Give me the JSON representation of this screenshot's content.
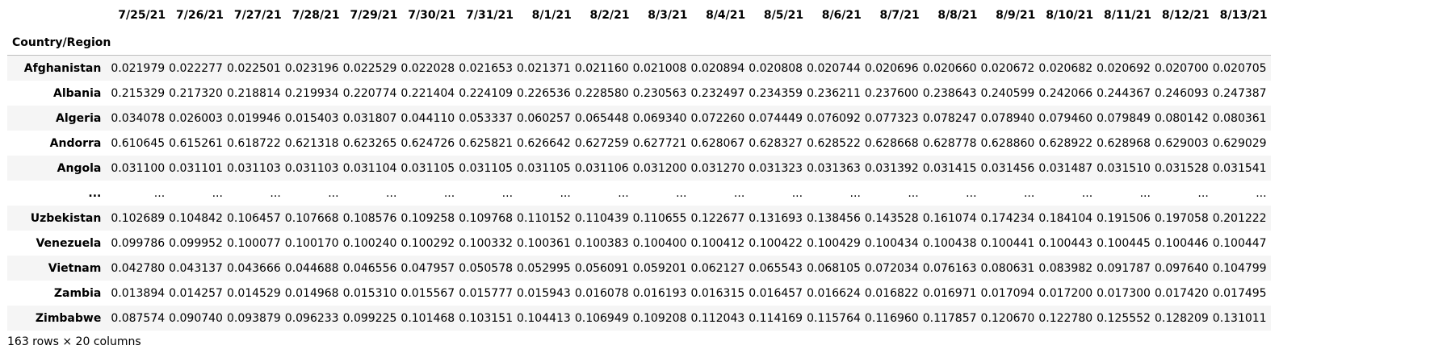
{
  "table": {
    "index_name": "Country/Region",
    "columns": [
      "7/25/21",
      "7/26/21",
      "7/27/21",
      "7/28/21",
      "7/29/21",
      "7/30/21",
      "7/31/21",
      "8/1/21",
      "8/2/21",
      "8/3/21",
      "8/4/21",
      "8/5/21",
      "8/6/21",
      "8/7/21",
      "8/8/21",
      "8/9/21",
      "8/10/21",
      "8/11/21",
      "8/12/21",
      "8/13/21"
    ],
    "rows": [
      {
        "label": "Afghanistan",
        "values": [
          "0.021979",
          "0.022277",
          "0.022501",
          "0.023196",
          "0.022529",
          "0.022028",
          "0.021653",
          "0.021371",
          "0.021160",
          "0.021008",
          "0.020894",
          "0.020808",
          "0.020744",
          "0.020696",
          "0.020660",
          "0.020672",
          "0.020682",
          "0.020692",
          "0.020700",
          "0.020705"
        ]
      },
      {
        "label": "Albania",
        "values": [
          "0.215329",
          "0.217320",
          "0.218814",
          "0.219934",
          "0.220774",
          "0.221404",
          "0.224109",
          "0.226536",
          "0.228580",
          "0.230563",
          "0.232497",
          "0.234359",
          "0.236211",
          "0.237600",
          "0.238643",
          "0.240599",
          "0.242066",
          "0.244367",
          "0.246093",
          "0.247387"
        ]
      },
      {
        "label": "Algeria",
        "values": [
          "0.034078",
          "0.026003",
          "0.019946",
          "0.015403",
          "0.031807",
          "0.044110",
          "0.053337",
          "0.060257",
          "0.065448",
          "0.069340",
          "0.072260",
          "0.074449",
          "0.076092",
          "0.077323",
          "0.078247",
          "0.078940",
          "0.079460",
          "0.079849",
          "0.080142",
          "0.080361"
        ]
      },
      {
        "label": "Andorra",
        "values": [
          "0.610645",
          "0.615261",
          "0.618722",
          "0.621318",
          "0.623265",
          "0.624726",
          "0.625821",
          "0.626642",
          "0.627259",
          "0.627721",
          "0.628067",
          "0.628327",
          "0.628522",
          "0.628668",
          "0.628778",
          "0.628860",
          "0.628922",
          "0.628968",
          "0.629003",
          "0.629029"
        ]
      },
      {
        "label": "Angola",
        "values": [
          "0.031100",
          "0.031101",
          "0.031103",
          "0.031103",
          "0.031104",
          "0.031105",
          "0.031105",
          "0.031105",
          "0.031106",
          "0.031200",
          "0.031270",
          "0.031323",
          "0.031363",
          "0.031392",
          "0.031415",
          "0.031456",
          "0.031487",
          "0.031510",
          "0.031528",
          "0.031541"
        ]
      },
      {
        "label": "...",
        "values": [
          "...",
          "...",
          "...",
          "...",
          "...",
          "...",
          "...",
          "...",
          "...",
          "...",
          "...",
          "...",
          "...",
          "...",
          "...",
          "...",
          "...",
          "...",
          "...",
          "..."
        ]
      },
      {
        "label": "Uzbekistan",
        "values": [
          "0.102689",
          "0.104842",
          "0.106457",
          "0.107668",
          "0.108576",
          "0.109258",
          "0.109768",
          "0.110152",
          "0.110439",
          "0.110655",
          "0.122677",
          "0.131693",
          "0.138456",
          "0.143528",
          "0.161074",
          "0.174234",
          "0.184104",
          "0.191506",
          "0.197058",
          "0.201222"
        ]
      },
      {
        "label": "Venezuela",
        "values": [
          "0.099786",
          "0.099952",
          "0.100077",
          "0.100170",
          "0.100240",
          "0.100292",
          "0.100332",
          "0.100361",
          "0.100383",
          "0.100400",
          "0.100412",
          "0.100422",
          "0.100429",
          "0.100434",
          "0.100438",
          "0.100441",
          "0.100443",
          "0.100445",
          "0.100446",
          "0.100447"
        ]
      },
      {
        "label": "Vietnam",
        "values": [
          "0.042780",
          "0.043137",
          "0.043666",
          "0.044688",
          "0.046556",
          "0.047957",
          "0.050578",
          "0.052995",
          "0.056091",
          "0.059201",
          "0.062127",
          "0.065543",
          "0.068105",
          "0.072034",
          "0.076163",
          "0.080631",
          "0.083982",
          "0.091787",
          "0.097640",
          "0.104799"
        ]
      },
      {
        "label": "Zambia",
        "values": [
          "0.013894",
          "0.014257",
          "0.014529",
          "0.014968",
          "0.015310",
          "0.015567",
          "0.015777",
          "0.015943",
          "0.016078",
          "0.016193",
          "0.016315",
          "0.016457",
          "0.016624",
          "0.016822",
          "0.016971",
          "0.017094",
          "0.017200",
          "0.017300",
          "0.017420",
          "0.017495"
        ]
      },
      {
        "label": "Zimbabwe",
        "values": [
          "0.087574",
          "0.090740",
          "0.093879",
          "0.096233",
          "0.099225",
          "0.101468",
          "0.103151",
          "0.104413",
          "0.106949",
          "0.109208",
          "0.112043",
          "0.114169",
          "0.115764",
          "0.116960",
          "0.117857",
          "0.120670",
          "0.122780",
          "0.125552",
          "0.128209",
          "0.131011"
        ]
      }
    ]
  },
  "footer": {
    "shape_text": "163 rows × 20 columns"
  }
}
